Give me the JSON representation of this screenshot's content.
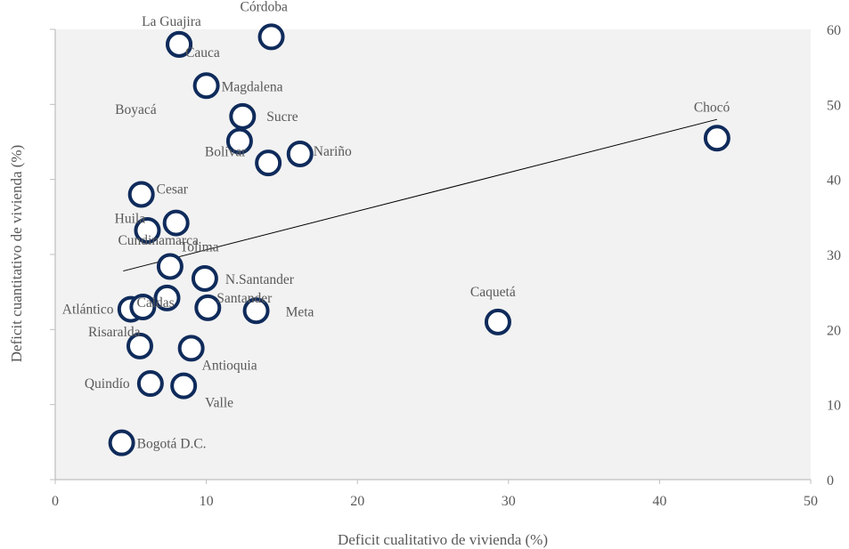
{
  "chart_data": {
    "type": "scatter",
    "title": "",
    "xlabel": "Deficit cualitativo de vivienda (%)",
    "ylabel": "Deficit cuantitativo de vivienda (%)",
    "xlim": [
      0,
      50
    ],
    "ylim": [
      0,
      60
    ],
    "x_ticks": [
      "0",
      "10",
      "20",
      "30",
      "40",
      "50"
    ],
    "y_ticks": [
      "0",
      "10",
      "20",
      "30",
      "40",
      "50",
      "60"
    ],
    "grid": false,
    "legend": "none",
    "trendline": {
      "type": "linear",
      "x_start": 4.5,
      "y_start": 27.8,
      "x_end": 43.8,
      "y_end": 48.0
    },
    "colors": {
      "marker": "#0f2b5b",
      "trend": "#000000",
      "plot_bg": "#f2f2f2",
      "axis": "#bfbfbf",
      "text": "#595959"
    },
    "points": [
      {
        "label": "Córdoba",
        "x": 14.3,
        "y": 59.0
      },
      {
        "label": "La Guajira",
        "x": 8.2,
        "y": 58.0
      },
      {
        "label": "Cauca",
        "x": 8.2,
        "y": 58.0
      },
      {
        "label": "Magdalena",
        "x": 10.0,
        "y": 52.5
      },
      {
        "label": "Sucre",
        "x": 12.4,
        "y": 48.4
      },
      {
        "label": "Bolívar",
        "x": 12.2,
        "y": 45.1
      },
      {
        "label": "Nariño",
        "x": 16.2,
        "y": 43.4
      },
      {
        "label": "Chocó",
        "x": 43.8,
        "y": 45.5
      },
      {
        "label": "Boyacá",
        "x": 14.1,
        "y": 42.2
      },
      {
        "label": "Cesar",
        "x": 5.7,
        "y": 38.0
      },
      {
        "label": "Huila",
        "x": 8.0,
        "y": 34.2
      },
      {
        "label": "Cundinamarca",
        "x": 6.1,
        "y": 33.2
      },
      {
        "label": "Tolima",
        "x": 7.6,
        "y": 28.4
      },
      {
        "label": "N.Santander",
        "x": 9.9,
        "y": 26.8
      },
      {
        "label": "Caldas",
        "x": 7.4,
        "y": 24.2
      },
      {
        "label": "Santander",
        "x": 10.1,
        "y": 22.9
      },
      {
        "label": "Meta",
        "x": 13.3,
        "y": 22.5
      },
      {
        "label": "Atlántico",
        "x": 5.0,
        "y": 22.7
      },
      {
        "label": "Atlántico",
        "x": 5.8,
        "y": 23.0
      },
      {
        "label": "Caquetá",
        "x": 29.3,
        "y": 21.0
      },
      {
        "label": "Risaralda",
        "x": 5.6,
        "y": 17.8
      },
      {
        "label": "Antioquia",
        "x": 9.0,
        "y": 17.5
      },
      {
        "label": "Quindío",
        "x": 6.3,
        "y": 12.8
      },
      {
        "label": "Valle",
        "x": 8.5,
        "y": 12.5
      },
      {
        "label": "Bogotá D.C.",
        "x": 4.4,
        "y": 4.9
      }
    ]
  }
}
